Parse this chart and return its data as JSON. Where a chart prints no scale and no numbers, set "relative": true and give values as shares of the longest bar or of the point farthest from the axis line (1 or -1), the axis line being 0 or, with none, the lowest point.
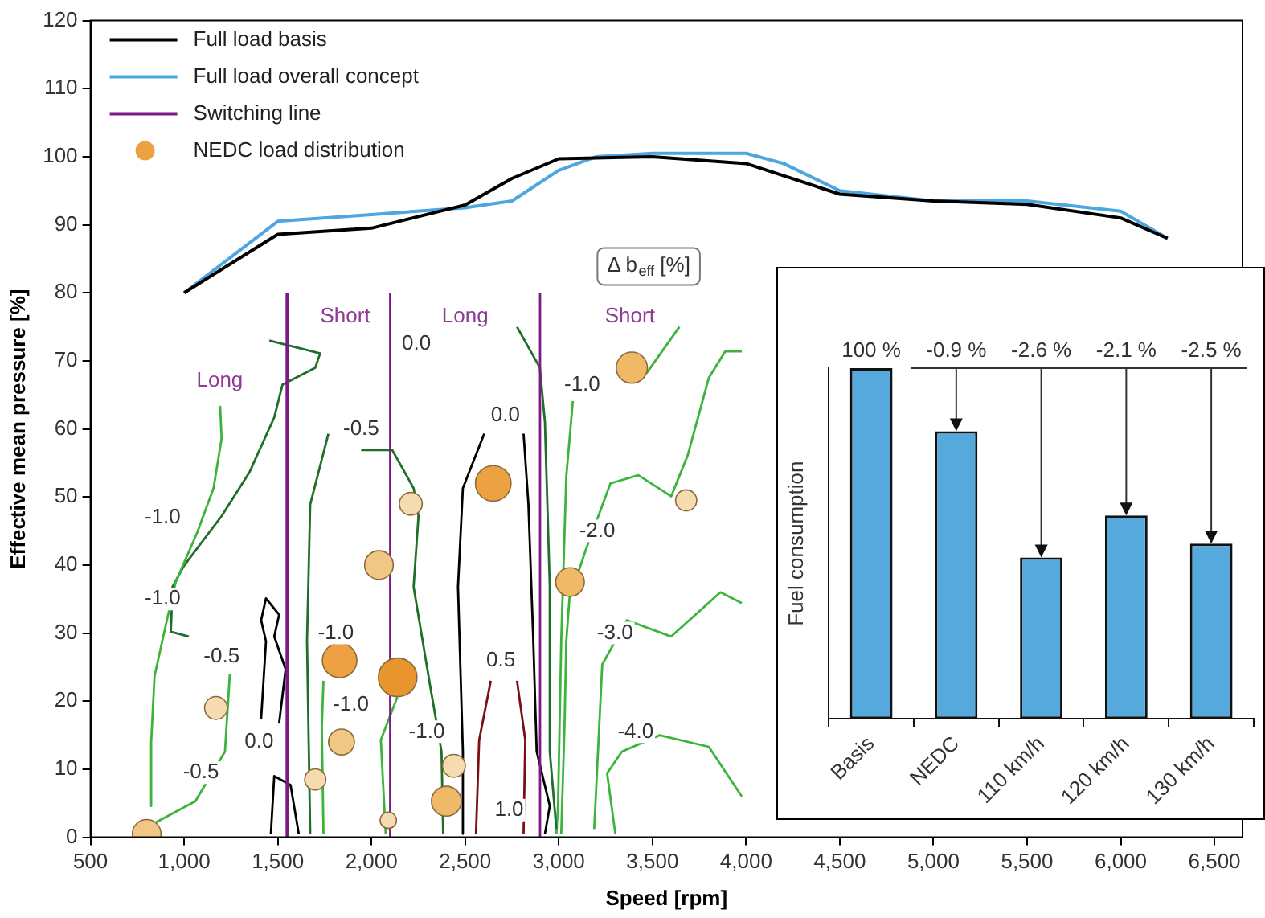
{
  "chart_data": [
    {
      "type": "line",
      "xlabel": "Speed [rpm]",
      "ylabel": "Effective mean pressure [%]",
      "xlim": [
        500,
        6650
      ],
      "ylim": [
        0,
        120
      ],
      "xticks": [
        500,
        {
          "value": 1000,
          "label": "1,000"
        },
        {
          "value": 1500,
          "label": "1,500"
        },
        {
          "value": 2000,
          "label": "2,000"
        },
        {
          "value": 2500,
          "label": "2,500"
        },
        {
          "value": 3000,
          "label": "3,000"
        },
        {
          "value": 3500,
          "label": "3,500"
        },
        {
          "value": 4000,
          "label": "4,000"
        },
        {
          "value": 4500,
          "label": "4,500"
        },
        {
          "value": 5000,
          "label": "5,000"
        },
        {
          "value": 5500,
          "label": "5,500"
        },
        {
          "value": 6000,
          "label": "6,000"
        },
        {
          "value": 6500,
          "label": "6,500"
        }
      ],
      "yticks": [
        0,
        10,
        20,
        30,
        40,
        50,
        60,
        70,
        80,
        90,
        100,
        110,
        120
      ],
      "grid": false,
      "legend": "top left",
      "series": [
        {
          "name": "Full load basis",
          "type": "line",
          "color": "#000000",
          "x": [
            1000,
            1500,
            2000,
            2500,
            2750,
            3000,
            3500,
            4000,
            4500,
            5000,
            5500,
            6000,
            6250
          ],
          "values": [
            80,
            88.6,
            89.5,
            92.9,
            96.8,
            99.7,
            100,
            99,
            94.5,
            93.5,
            93,
            91,
            88
          ]
        },
        {
          "name": "Full load overall concept",
          "type": "line",
          "color": "#4ea6e0",
          "x": [
            1000,
            1500,
            2000,
            2500,
            2750,
            3000,
            3200,
            3500,
            4000,
            4200,
            4500,
            5000,
            5500,
            6000,
            6250
          ],
          "values": [
            80,
            90.5,
            91.5,
            92.5,
            93.5,
            98,
            100,
            100.5,
            100.5,
            99,
            95,
            93.5,
            93.5,
            92,
            88
          ]
        },
        {
          "name": "Switching line",
          "type": "line",
          "color": "#7b1a85",
          "x": [
            1550,
            1550
          ],
          "values": [
            0,
            80
          ]
        },
        {
          "type": "line",
          "color": "#7b1a85",
          "x": [
            2100,
            2100
          ],
          "values": [
            0,
            80
          ]
        },
        {
          "type": "line",
          "color": "#7b1a85",
          "x": [
            2900,
            2900
          ],
          "values": [
            0,
            80
          ]
        },
        {
          "name": "NEDC load distribution",
          "type": "bubble",
          "color": "#eda143",
          "x": [
            800,
            1170,
            1700,
            1830,
            1840,
            2040,
            2090,
            2210,
            2140,
            2440,
            2400,
            2650,
            3060,
            3390,
            3680
          ],
          "values": [
            0.5,
            19,
            8.5,
            26,
            14,
            40,
            2.5,
            49,
            23.5,
            10.5,
            5.3,
            52,
            37.5,
            69,
            49.5
          ],
          "sizes": [
            0.55,
            0.35,
            0.3,
            0.8,
            0.45,
            0.55,
            0.18,
            0.35,
            1,
            0.35,
            0.6,
            0.85,
            0.55,
            0.65,
            0.3
          ],
          "colors": [
            "#f2c684",
            "#f7dbb0",
            "#f7dbb0",
            "#eda143",
            "#f2c684",
            "#f2c684",
            "#f7dbb0",
            "#f7dbb0",
            "#e8952e",
            "#f7dbb0",
            "#f0b968",
            "#eda143",
            "#f0b968",
            "#f0b968",
            "#f7dbb0"
          ]
        },
        {
          "type": "line",
          "color": "#3cb43c",
          "x": [
            1192,
            1200,
            1157,
            1070,
            955,
            912,
            842,
            824,
            824
          ],
          "values": [
            63.4,
            58.6,
            51.3,
            44.8,
            37.5,
            32.4,
            23.7,
            14,
            4.6
          ]
        },
        {
          "type": "line",
          "color": "#1f6e2a",
          "x": [
            1455,
            1726,
            1700,
            1525,
            1481,
            1350,
            1200,
            999,
            938,
            929,
            1025
          ],
          "values": [
            73,
            71.1,
            69,
            66.5,
            61.7,
            53.7,
            47.2,
            39.9,
            36.8,
            30.2,
            29.5
          ]
        },
        {
          "type": "line",
          "color": "#3cb43c",
          "x": [
            1244,
            1218,
            1060,
            850
          ],
          "values": [
            24,
            12.6,
            5.3,
            2.2
          ]
        },
        {
          "type": "line",
          "color": "#000000",
          "x": [
            1411,
            1437,
            1411,
            1437,
            1507,
            1481,
            1542,
            1507
          ],
          "values": [
            17.4,
            28.8,
            31.9,
            35.1,
            32.7,
            29.5,
            24.7,
            16.7
          ]
        },
        {
          "type": "line",
          "color": "#000000",
          "x": [
            1463,
            1481,
            1568,
            1612
          ],
          "values": [
            0.5,
            9,
            7.7,
            0.5
          ]
        },
        {
          "type": "line",
          "color": "#1f6e2a",
          "x": [
            1770,
            1673,
            1656,
            1673
          ],
          "values": [
            59.3,
            48.9,
            28.8,
            0.5
          ]
        },
        {
          "type": "line",
          "color": "#3cb43c",
          "x": [
            1744,
            1735,
            1744
          ],
          "values": [
            23,
            16.2,
            0.5
          ]
        },
        {
          "type": "line",
          "color": "#1f6e2a",
          "x": [
            1945,
            2111,
            2225,
            2251,
            2225,
            2313,
            2374,
            2383
          ],
          "values": [
            56.9,
            56.9,
            51.3,
            47.2,
            36.8,
            22.3,
            12.6,
            0.5
          ]
        },
        {
          "type": "line",
          "color": "#3cb43c",
          "x": [
            2138,
            2050,
            2076
          ],
          "values": [
            20.6,
            14.3,
            0.5
          ]
        },
        {
          "type": "line",
          "color": "#000000",
          "x": [
            2602,
            2488,
            2462,
            2488,
            2488
          ],
          "values": [
            59.3,
            51.3,
            36.8,
            12.6,
            0.5
          ]
        },
        {
          "type": "line",
          "color": "#000000",
          "x": [
            2812,
            2838,
            2864,
            2882,
            2952,
            2926
          ],
          "values": [
            59.3,
            48.9,
            28.8,
            12.6,
            4.6,
            0.5
          ]
        },
        {
          "type": "line",
          "color": "#7a1010",
          "x": [
            2637,
            2575,
            2558
          ],
          "values": [
            23,
            14.3,
            0.5
          ]
        },
        {
          "type": "line",
          "color": "#7a1010",
          "x": [
            2777,
            2821,
            2812
          ],
          "values": [
            23,
            14.3,
            0.5
          ]
        },
        {
          "type": "line",
          "color": "#1f6e2a",
          "x": [
            2777,
            2899,
            2926,
            2952,
            2952,
            2987
          ],
          "values": [
            75,
            69,
            61,
            36.8,
            12.6,
            1.2
          ]
        },
        {
          "type": "line",
          "color": "#3cb43c",
          "x": [
            3075,
            3040,
            3013,
            2996,
            2987
          ],
          "values": [
            64.1,
            53,
            28.8,
            4.6,
            0.5
          ]
        },
        {
          "type": "line",
          "color": "#3cb43c",
          "x": [
            3469,
            3644
          ],
          "values": [
            68.2,
            75
          ]
        },
        {
          "type": "line",
          "color": "#3cb43c",
          "x": [
            3013,
            3031,
            3040,
            3057,
            3145,
            3276,
            3425,
            3600,
            3688,
            3801,
            3889,
            3977
          ],
          "values": [
            0.5,
            16.7,
            28.8,
            35.1,
            42.3,
            52,
            53.2,
            50.1,
            56.1,
            67.5,
            71.4,
            71.4
          ]
        },
        {
          "type": "line",
          "color": "#3cb43c",
          "x": [
            3189,
            3232,
            3364,
            3600,
            3863,
            3977
          ],
          "values": [
            1.2,
            25.4,
            31.9,
            29.5,
            36,
            34.4
          ]
        },
        {
          "type": "line",
          "color": "#3cb43c",
          "x": [
            3302,
            3258,
            3337,
            3539,
            3801,
            3977
          ],
          "values": [
            0.5,
            9.4,
            12.6,
            15,
            13.3,
            6
          ]
        }
      ],
      "annotations": [
        "Long",
        "Short",
        "Long",
        "Short",
        "Δ b$_{eff}$ [%]",
        "-1.0",
        "-1.0",
        "-0.5",
        "-0.5",
        "0.0",
        "-1.0",
        "-1.0",
        "-0.5",
        "0.0",
        "-1.0",
        "0.0",
        "0.5",
        "1.0",
        "-1.0",
        "-2.0",
        "-3.0",
        "-4.0"
      ]
    },
    {
      "type": "bar",
      "ylabel": "Fuel consumption",
      "color": "#56a9dc",
      "categories": [
        "Basis",
        "NEDC",
        "110 km/h",
        "120 km/h",
        "130 km/h"
      ],
      "values": [
        1,
        0.82,
        0.46,
        0.58,
        0.5
      ],
      "relative": true,
      "annotations": [
        "100 %",
        "-0.9 %",
        "-2.6 %",
        "-2.1 %",
        "-2.5 %"
      ]
    }
  ]
}
